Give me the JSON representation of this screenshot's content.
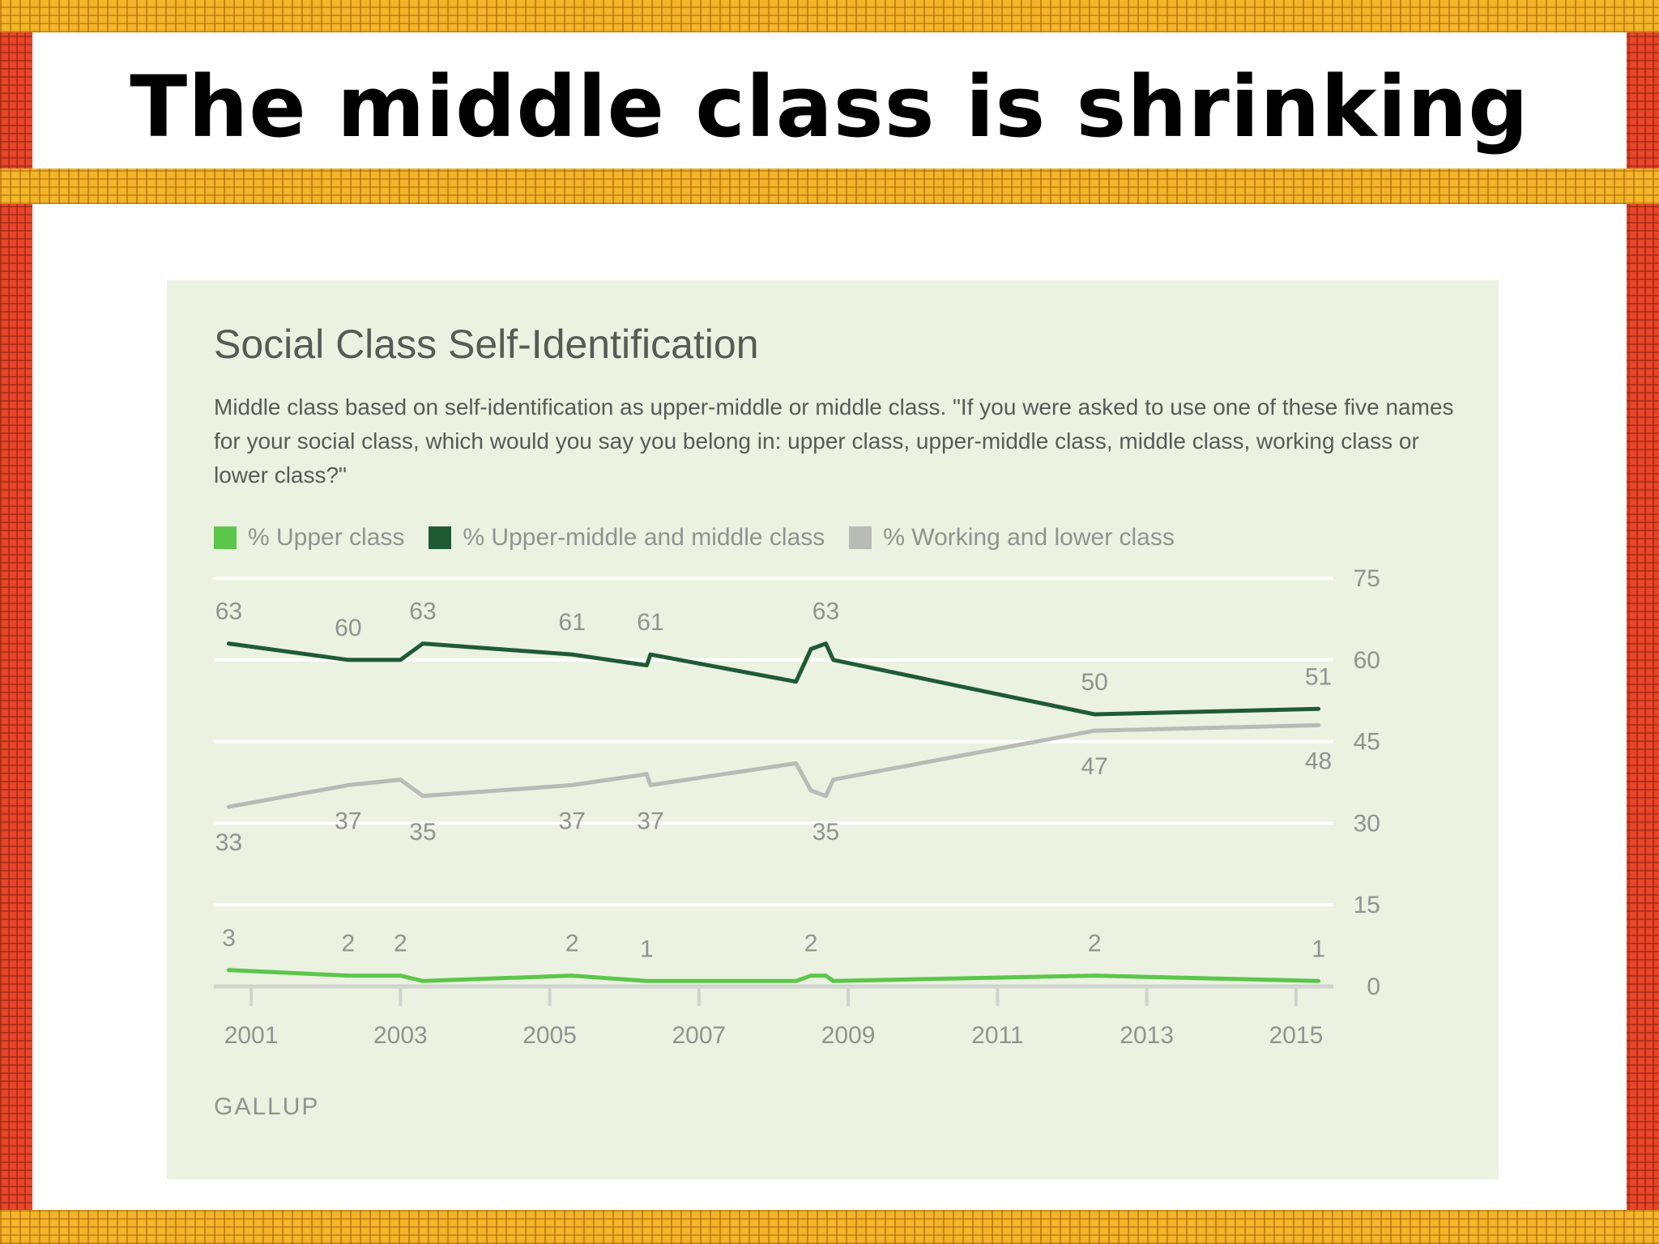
{
  "slide": {
    "title": "The middle class is shrinking"
  },
  "colors": {
    "upper": "#5cc64b",
    "middle": "#1f5a35",
    "working": "#b8bbb6",
    "grid": "#ffffff",
    "axis": "#cfd4cc",
    "label": "#8f948f",
    "card": "#ebf2e1"
  },
  "chart_data": {
    "type": "line",
    "title": "Social Class Self-Identification",
    "subtitle": "Middle class based on self-identification as upper-middle or middle class. \"If you were asked to use one of these five names for your social class, which would you say you belong in: upper class, upper-middle class, middle class, working class or lower class?\"",
    "source": "GALLUP",
    "ylim": [
      0,
      75
    ],
    "y_ticks": [
      0,
      15,
      30,
      45,
      60,
      75
    ],
    "y_axis_side": "right",
    "xlim": [
      2000.5,
      2015.5
    ],
    "x_ticks": [
      "2001",
      "2003",
      "2005",
      "2007",
      "2009",
      "2011",
      "2013",
      "2015"
    ],
    "grid": true,
    "legend_position": "top-left",
    "series": [
      {
        "key": "upper",
        "name": "% Upper class",
        "x": [
          2000.7,
          2002.3,
          2003.0,
          2003.3,
          2005.3,
          2006.3,
          2008.3,
          2008.5,
          2008.7,
          2008.8,
          2012.3,
          2015.3
        ],
        "values": [
          3,
          2,
          2,
          1,
          2,
          1,
          1,
          2,
          2,
          1,
          2,
          1
        ],
        "labels": [
          {
            "x": 2000.7,
            "y": 3,
            "text": "3",
            "pos": "above"
          },
          {
            "x": 2002.3,
            "y": 2,
            "text": "2",
            "pos": "above"
          },
          {
            "x": 2003.0,
            "y": 2,
            "text": "2",
            "pos": "above"
          },
          {
            "x": 2005.3,
            "y": 2,
            "text": "2",
            "pos": "above"
          },
          {
            "x": 2006.3,
            "y": 1,
            "text": "1",
            "pos": "above"
          },
          {
            "x": 2008.5,
            "y": 2,
            "text": "2",
            "pos": "above"
          },
          {
            "x": 2012.3,
            "y": 2,
            "text": "2",
            "pos": "above"
          },
          {
            "x": 2015.3,
            "y": 1,
            "text": "1",
            "pos": "above"
          }
        ]
      },
      {
        "key": "middle",
        "name": "% Upper-middle and middle class",
        "x": [
          2000.7,
          2002.3,
          2003.0,
          2003.3,
          2005.3,
          2006.3,
          2006.35,
          2008.3,
          2008.5,
          2008.7,
          2008.8,
          2012.3,
          2015.3
        ],
        "values": [
          63,
          60,
          60,
          63,
          61,
          59,
          61,
          56,
          62,
          63,
          60,
          50,
          51
        ],
        "labels": [
          {
            "x": 2000.7,
            "y": 63,
            "text": "63",
            "pos": "above"
          },
          {
            "x": 2002.3,
            "y": 60,
            "text": "60",
            "pos": "above"
          },
          {
            "x": 2003.3,
            "y": 63,
            "text": "63",
            "pos": "above"
          },
          {
            "x": 2005.3,
            "y": 61,
            "text": "61",
            "pos": "above"
          },
          {
            "x": 2006.35,
            "y": 61,
            "text": "61",
            "pos": "above"
          },
          {
            "x": 2008.7,
            "y": 63,
            "text": "63",
            "pos": "above"
          },
          {
            "x": 2012.3,
            "y": 50,
            "text": "50",
            "pos": "above"
          },
          {
            "x": 2015.3,
            "y": 51,
            "text": "51",
            "pos": "above"
          }
        ]
      },
      {
        "key": "working",
        "name": "% Working and lower class",
        "x": [
          2000.7,
          2002.3,
          2003.0,
          2003.3,
          2005.3,
          2006.3,
          2006.35,
          2008.3,
          2008.5,
          2008.7,
          2008.8,
          2012.3,
          2015.3
        ],
        "values": [
          33,
          37,
          38,
          35,
          37,
          39,
          37,
          41,
          36,
          35,
          38,
          47,
          48
        ],
        "labels": [
          {
            "x": 2000.7,
            "y": 33,
            "text": "33",
            "pos": "below"
          },
          {
            "x": 2002.3,
            "y": 37,
            "text": "37",
            "pos": "below"
          },
          {
            "x": 2003.3,
            "y": 35,
            "text": "35",
            "pos": "below"
          },
          {
            "x": 2005.3,
            "y": 37,
            "text": "37",
            "pos": "below"
          },
          {
            "x": 2006.35,
            "y": 37,
            "text": "37",
            "pos": "below"
          },
          {
            "x": 2008.7,
            "y": 35,
            "text": "35",
            "pos": "below"
          },
          {
            "x": 2012.3,
            "y": 47,
            "text": "47",
            "pos": "below"
          },
          {
            "x": 2015.3,
            "y": 48,
            "text": "48",
            "pos": "below"
          }
        ]
      }
    ]
  }
}
